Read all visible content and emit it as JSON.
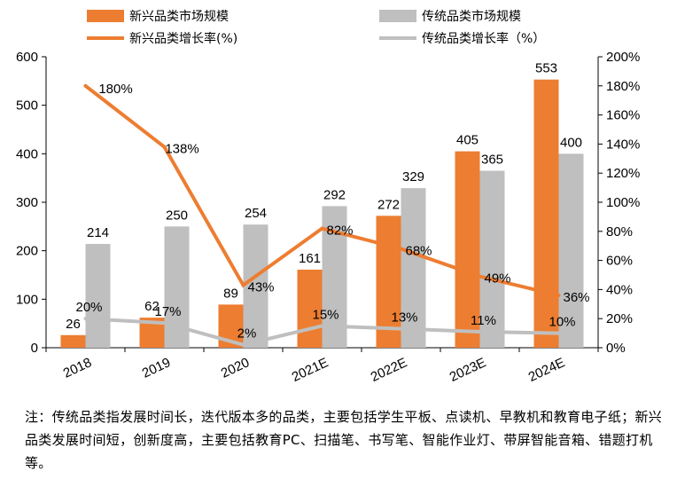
{
  "chart_data": {
    "type": "bar+line",
    "categories": [
      "2018",
      "2019",
      "2020",
      "2021E",
      "2022E",
      "2023E",
      "2024E"
    ],
    "series": [
      {
        "name": "新兴品类市场规模",
        "kind": "bar",
        "axis": "left",
        "color": "#ED7D31",
        "values": [
          26,
          62,
          89,
          161,
          272,
          405,
          553
        ]
      },
      {
        "name": "传统品类市场规模",
        "kind": "bar",
        "axis": "left",
        "color": "#BFBFBF",
        "values": [
          214,
          250,
          254,
          292,
          329,
          365,
          400
        ]
      },
      {
        "name": "新兴品类增长率(%)",
        "kind": "line",
        "axis": "right",
        "color": "#ED7D31",
        "values": [
          180,
          138,
          43,
          82,
          68,
          49,
          36
        ],
        "labels": [
          "180%",
          "138%",
          "43%",
          "82%",
          "68%",
          "49%",
          "36%"
        ]
      },
      {
        "name": "传统品类增长率（%）",
        "kind": "line",
        "axis": "right",
        "color": "#BFBFBF",
        "values": [
          20,
          17,
          2,
          15,
          13,
          11,
          10
        ],
        "labels": [
          "20%",
          "17%",
          "2%",
          "15%",
          "13%",
          "11%",
          "10%"
        ]
      }
    ],
    "y_left": {
      "min": 0,
      "max": 600,
      "step": 100,
      "ticks": [
        "0",
        "100",
        "200",
        "300",
        "400",
        "500",
        "600"
      ]
    },
    "y_right": {
      "min": 0,
      "max": 200,
      "step": 20,
      "ticks": [
        "0%",
        "20%",
        "40%",
        "60%",
        "80%",
        "100%",
        "120%",
        "140%",
        "160%",
        "180%",
        "200%"
      ]
    },
    "grid": false,
    "legend_position": "top"
  },
  "note": "注：传统品类指发展时间长，迭代版本多的品类，主要包括学生平板、点读机、早教机和教育电子纸；新兴品类发展时间短，创新度高，主要包括教育PC、扫描笔、书写笔、智能作业灯、带屏智能音箱、错题打机等。"
}
